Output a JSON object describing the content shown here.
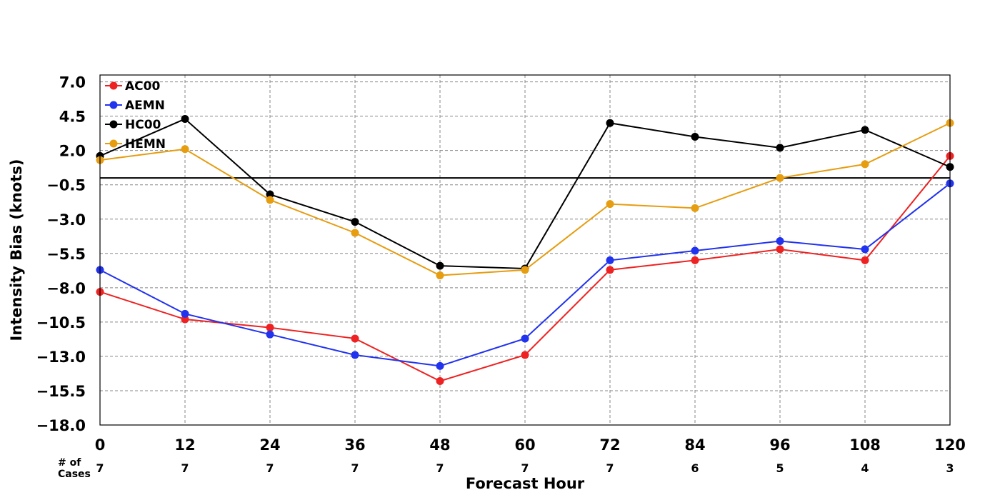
{
  "chart_data": {
    "type": "line",
    "title": "",
    "xlabel": "Forecast Hour",
    "ylabel": "Intensity Bias (knots)",
    "x": [
      0,
      12,
      24,
      36,
      48,
      60,
      72,
      84,
      96,
      108,
      120
    ],
    "xlim": [
      0,
      120
    ],
    "ylim": [
      -18.0,
      7.5
    ],
    "x_ticks": [
      "0",
      "12",
      "24",
      "36",
      "48",
      "60",
      "72",
      "84",
      "96",
      "108",
      "120"
    ],
    "y_ticks": [
      -18.0,
      -15.5,
      -13.0,
      -10.5,
      -8.0,
      -5.5,
      -3.0,
      -0.5,
      2.0,
      4.5,
      7.0
    ],
    "y_tick_labels": [
      "−18.0",
      "−15.5",
      "−13.0",
      "−10.5",
      "−8.0",
      "−5.5",
      "−3.0",
      "−0.5",
      "2.0",
      "4.5",
      "7.0"
    ],
    "reference_line": 0,
    "grid": true,
    "legend_position": "top-left",
    "cases_label": "# of\nCases",
    "cases": [
      "7",
      "7",
      "7",
      "7",
      "7",
      "7",
      "7",
      "6",
      "5",
      "4",
      "3"
    ],
    "series": [
      {
        "name": "AC00",
        "color": "#ee2222",
        "values": [
          -8.3,
          -10.3,
          -10.9,
          -11.7,
          -14.8,
          -12.9,
          -6.7,
          -6.0,
          -5.2,
          -6.0,
          1.6
        ]
      },
      {
        "name": "AEMN",
        "color": "#2233ee",
        "values": [
          -6.7,
          -9.9,
          -11.4,
          -12.9,
          -13.7,
          -11.7,
          -6.0,
          -5.3,
          -4.6,
          -5.2,
          -0.4
        ]
      },
      {
        "name": "HC00",
        "color": "#000000",
        "values": [
          1.6,
          4.3,
          -1.2,
          -3.2,
          -6.4,
          -6.6,
          4.0,
          3.0,
          2.2,
          3.5,
          0.8
        ]
      },
      {
        "name": "HEMN",
        "color": "#e69d10",
        "values": [
          1.3,
          2.1,
          -1.6,
          -4.0,
          -7.1,
          -6.7,
          -1.9,
          -2.2,
          0.0,
          1.0,
          4.0
        ]
      }
    ]
  }
}
